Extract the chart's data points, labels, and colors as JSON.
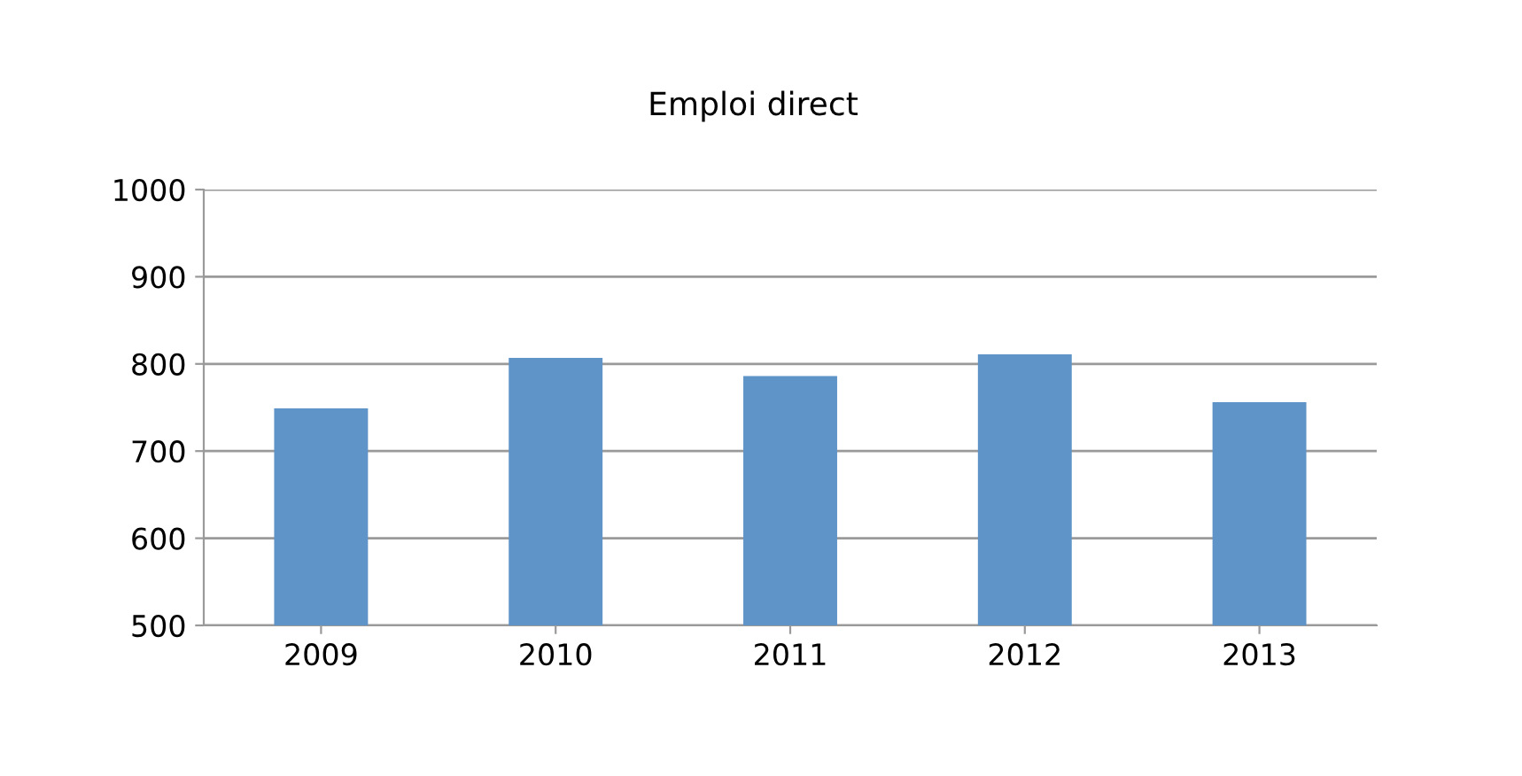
{
  "chart_data": {
    "type": "bar",
    "title": "Emploi direct",
    "categories": [
      "2009",
      "2010",
      "2011",
      "2012",
      "2013"
    ],
    "values": [
      749,
      807,
      786,
      811,
      756
    ],
    "color": "#5f94c8",
    "ylim": [
      500,
      1000
    ],
    "yticks": [
      500,
      600,
      700,
      800,
      900,
      1000
    ],
    "grid": "y"
  }
}
